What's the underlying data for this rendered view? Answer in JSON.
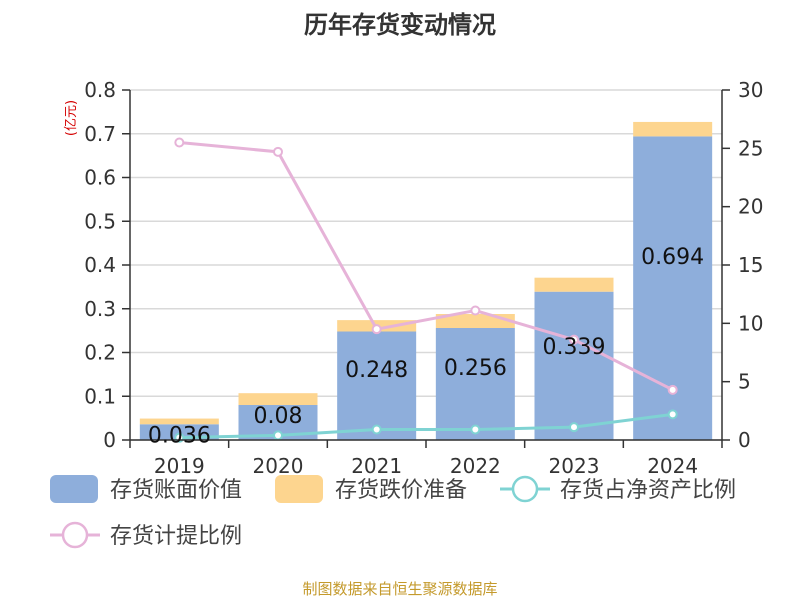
{
  "chart_data": {
    "type": "bar",
    "title": "历年存货变动情况",
    "categories": [
      "2019",
      "2020",
      "2021",
      "2022",
      "2023",
      "2024"
    ],
    "y_left": {
      "unit_label": "(亿元)",
      "lim": [
        0,
        0.8
      ],
      "ticks": [
        "0",
        "0.1",
        "0.2",
        "0.3",
        "0.4",
        "0.5",
        "0.6",
        "0.7",
        "0.8"
      ]
    },
    "y_right": {
      "lim": [
        0,
        30
      ],
      "ticks": [
        "0",
        "5",
        "10",
        "15",
        "20",
        "25",
        "30"
      ]
    },
    "stacked_bars": [
      {
        "name": "存货账面价值",
        "color": "#8eaedb",
        "axis": "left",
        "values": [
          0.036,
          0.08,
          0.248,
          0.256,
          0.339,
          0.694
        ],
        "labels": [
          "0.036",
          "0.08",
          "0.248",
          "0.256",
          "0.339",
          "0.694"
        ]
      },
      {
        "name": "存货跌价准备",
        "color": "#fdd58f",
        "axis": "left",
        "values": [
          0.013,
          0.027,
          0.026,
          0.032,
          0.032,
          0.033
        ]
      }
    ],
    "lines": [
      {
        "name": "存货占净资产比例",
        "color": "#7fd3d3",
        "axis": "right",
        "values": [
          0.2,
          0.4,
          0.9,
          0.9,
          1.1,
          2.2
        ]
      },
      {
        "name": "存货计提比例",
        "color": "#e6b3d8",
        "axis": "right",
        "values": [
          25.5,
          24.7,
          9.5,
          11.1,
          8.6,
          4.3
        ]
      }
    ],
    "legend_position": "bottom",
    "grid": true
  },
  "source_text": "制图数据来自恒生聚源数据库"
}
